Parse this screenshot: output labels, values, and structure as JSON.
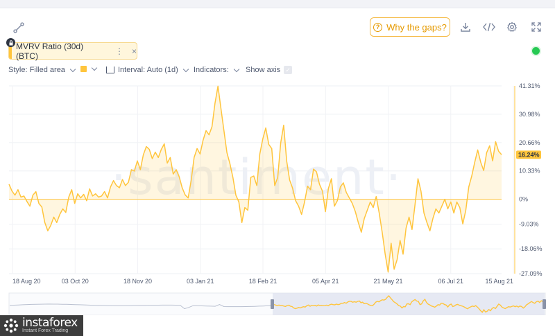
{
  "header": {
    "gaps_button_label": "Why the gaps?",
    "icons": [
      "link-icon",
      "download-icon",
      "embed-code-icon",
      "settings-gear-icon",
      "fullscreen-icon"
    ]
  },
  "metric": {
    "label": "MVRV Ratio (30d) (BTC)",
    "menu_glyph": "⋮",
    "close_glyph": "×",
    "color": "#ffc53d"
  },
  "status": {
    "color": "#26c953"
  },
  "toolbar": {
    "style_label": "Style: Filled area",
    "interval_label": "Interval: Auto (1d)",
    "indicators_label": "Indicators:",
    "show_axis_label": "Show axis",
    "check_glyph": "✓"
  },
  "watermark": "·santiment·",
  "branding": {
    "name": "instaforex",
    "tagline": "Instant Forex Trading"
  },
  "chart_data": {
    "type": "area",
    "title": "",
    "xlabel": "",
    "ylabel": "",
    "x_ticks": [
      "18 Aug 20",
      "03 Oct 20",
      "18 Nov 20",
      "03 Jan 21",
      "18 Feb 21",
      "05 Apr 21",
      "21 May 21",
      "06 Jul 21",
      "15 Aug 21"
    ],
    "y_ticks": [
      "41.31%",
      "30.98%",
      "20.66%",
      "10.33%",
      "0%",
      "-9.03%",
      "-18.06%",
      "-27.09%"
    ],
    "ylim": [
      -27.09,
      41.31
    ],
    "last_value_label": "16.24%",
    "series_color": "#ffc53d",
    "series": [
      {
        "name": "MVRV Ratio (30d) (BTC)",
        "x_range": [
          "2020-08-14",
          "2021-08-17"
        ],
        "values": [
          5.5,
          3.0,
          1.5,
          3.5,
          0.8,
          1.2,
          -0.8,
          -2.5,
          1.5,
          2.8,
          -1.5,
          -2.8,
          -8.5,
          -11.5,
          -9.5,
          -6.5,
          -8.5,
          -5.5,
          -3.5,
          -4.8,
          0.8,
          3.5,
          -1.5,
          2.0,
          0.5,
          1.8,
          -0.5,
          3.8,
          1.2,
          2.0,
          0.8,
          1.2,
          2.8,
          0.5,
          4.5,
          6.8,
          5.0,
          4.2,
          7.2,
          5.0,
          6.2,
          10.8,
          10.3,
          14.0,
          10.8,
          16.2,
          19.2,
          18.2,
          14.8,
          17.2,
          15.2,
          18.2,
          20.2,
          13.2,
          15.2,
          9.2,
          10.8,
          8.2,
          4.2,
          1.6,
          0.5,
          6.8,
          15.2,
          18.5,
          16.5,
          21.5,
          25.0,
          23.5,
          26.5,
          35.0,
          41.2,
          33.0,
          25.0,
          17.0,
          13.0,
          8.0,
          1.5,
          -1.0,
          -8.5,
          -3.0,
          -4.0,
          8.0,
          8.5,
          5.0,
          16.5,
          22.0,
          26.0,
          20.0,
          18.5,
          5.0,
          8.0,
          20.5,
          27.0,
          14.0,
          7.0,
          4.0,
          -0.5,
          -2.5,
          -5.5,
          -1.0,
          4.8,
          3.5,
          11.0,
          10.0,
          5.5,
          3.0,
          -4.5,
          4.0,
          7.5,
          -2.5,
          -0.5,
          4.5,
          6.0,
          2.5,
          0.5,
          -1.5,
          -4.5,
          -8.5,
          -12.0,
          -7.0,
          -4.0,
          -1.0,
          -3.0,
          1.0,
          -5.0,
          -12.0,
          -20.0,
          -26.5,
          -16.0,
          -25.5,
          -22.0,
          -15.0,
          -20.0,
          -10.5,
          -6.5,
          -11.0,
          -2.0,
          7.5,
          3.0,
          -5.0,
          -8.5,
          -11.5,
          -7.0,
          -3.5,
          -5.0,
          -2.5,
          0.0,
          -3.5,
          -1.0,
          -5.0,
          -1.0,
          -3.0,
          -9.0,
          -4.0,
          4.5,
          8.5,
          13.5,
          18.0,
          13.5,
          10.5,
          17.0,
          19.5,
          14.0,
          21.0,
          17.5,
          16.24
        ]
      }
    ],
    "navigator": {
      "selected_range_start": "2020-08-14",
      "selected_range_end": "2021-08-17"
    }
  }
}
